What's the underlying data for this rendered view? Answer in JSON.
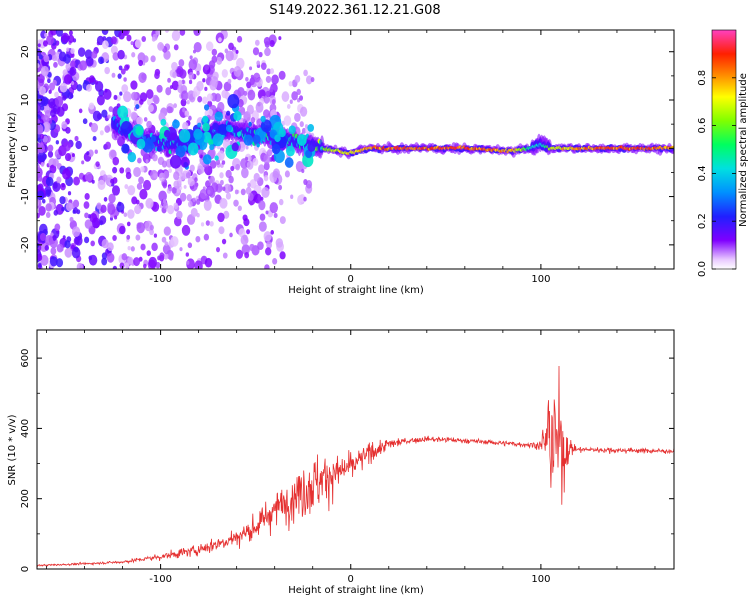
{
  "title": "S149.2022.361.12.21.G08",
  "colors": {
    "snr_line": "#e53030",
    "axis": "#000000"
  },
  "chart_data": [
    {
      "type": "heatmap",
      "xlabel": "Height of straight line (km)",
      "ylabel": "Frequency (Hz)",
      "xlim": [
        -165,
        170
      ],
      "ylim": [
        -25,
        24.5
      ],
      "xticks": [
        -100,
        0,
        100
      ],
      "xtick_labels": [
        "-100",
        "0",
        "100"
      ],
      "yticks": [
        -20,
        -10,
        0,
        10,
        20
      ],
      "ytick_labels": [
        "-20",
        "-10",
        "0",
        "10",
        "20"
      ],
      "colorbar": {
        "label": "Normalized spectral amplitude",
        "range": [
          0,
          1
        ],
        "ticks": [
          0.0,
          0.2,
          0.4,
          0.6,
          0.8
        ],
        "tick_labels": [
          "0.0",
          "0.2",
          "0.4",
          "0.6",
          "0.8"
        ],
        "colormap": "gist_ncar"
      },
      "ridge": {
        "description": "dominant frequency ridge",
        "x": [
          -125,
          -110,
          -95,
          -85,
          -75,
          -65,
          -55,
          -45,
          -35,
          -25,
          -15,
          -8,
          0,
          10,
          30,
          60,
          85,
          95,
          100,
          105,
          120,
          150,
          170
        ],
        "frequency": [
          5,
          2,
          1,
          1,
          3,
          4,
          3,
          3,
          2,
          1,
          0,
          -0.5,
          -1,
          0,
          0,
          0,
          -0.5,
          0,
          1,
          0,
          0,
          0,
          0
        ],
        "amplitude": [
          0.3,
          0.3,
          0.4,
          0.3,
          0.35,
          0.35,
          0.4,
          0.45,
          0.45,
          0.5,
          0.6,
          0.7,
          0.75,
          0.85,
          0.9,
          0.9,
          0.8,
          0.5,
          0.4,
          0.7,
          0.85,
          0.9,
          0.85
        ]
      }
    },
    {
      "type": "line",
      "xlabel": "Height of straight line (km)",
      "ylabel": "SNR (10 * v/v)",
      "xlim": [
        -165,
        170
      ],
      "ylim": [
        0,
        680
      ],
      "xticks": [
        -100,
        0,
        100
      ],
      "xtick_labels": [
        "-100",
        "0",
        "100"
      ],
      "yticks": [
        0,
        200,
        400,
        600
      ],
      "ytick_labels": [
        "0",
        "200",
        "400",
        "600"
      ],
      "series": [
        {
          "x": [
            -165,
            -140,
            -120,
            -100,
            -80,
            -60,
            -50,
            -40,
            -30,
            -20,
            -10,
            0,
            10,
            20,
            30,
            40,
            50,
            60,
            70,
            80,
            90,
            100,
            105,
            110,
            115,
            120,
            140,
            170
          ],
          "y": [
            10,
            15,
            20,
            35,
            55,
            90,
            120,
            170,
            210,
            240,
            270,
            290,
            330,
            355,
            365,
            370,
            368,
            365,
            362,
            358,
            355,
            352,
            380,
            340,
            345,
            340,
            338,
            335
          ],
          "noise": [
            3,
            4,
            5,
            12,
            20,
            35,
            45,
            60,
            90,
            110,
            80,
            50,
            35,
            20,
            12,
            10,
            10,
            9,
            9,
            9,
            10,
            15,
            250,
            260,
            30,
            10,
            9,
            9
          ]
        }
      ]
    }
  ]
}
